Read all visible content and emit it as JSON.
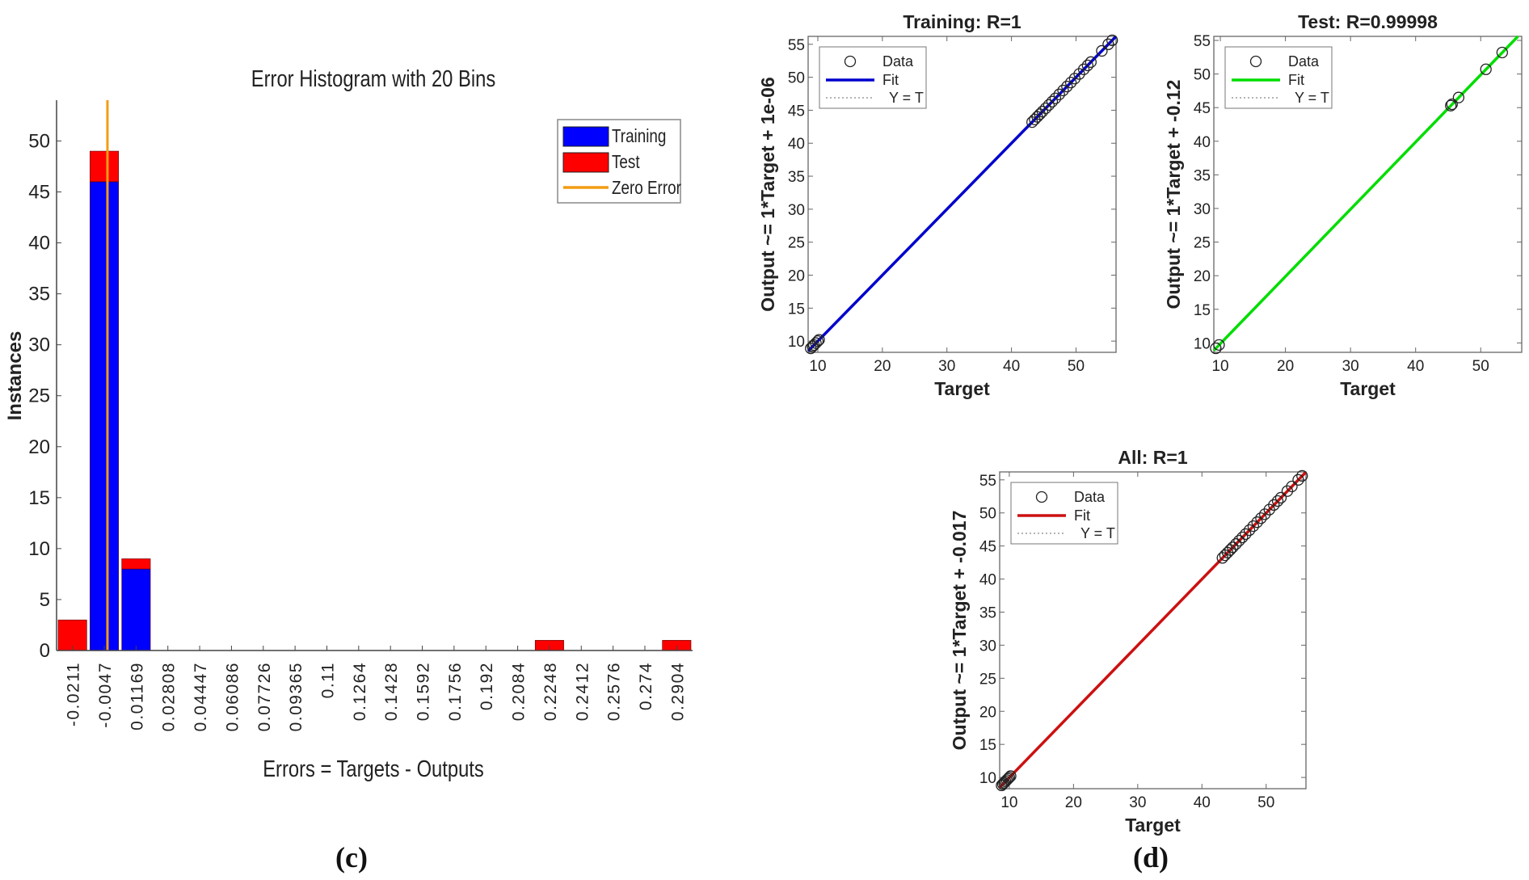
{
  "captions": {
    "c": "(c)",
    "d": "(d)"
  },
  "colors": {
    "training_blue": "#0000ff",
    "test_red": "#ff0000",
    "zero_error": "#f39c12",
    "fit_training": "#0000cc",
    "fit_test": "#00dd00",
    "fit_all": "#cc1111"
  },
  "chart_data": [
    {
      "id": "error-histogram",
      "type": "bar",
      "stacked": true,
      "title": "Error Histogram with 20 Bins",
      "xlabel": "Errors = Targets - Outputs",
      "ylabel": "Instances",
      "categories": [
        "-0.0211",
        "-0.0047",
        "0.01169",
        "0.02808",
        "0.04447",
        "0.06086",
        "0.07726",
        "0.09365",
        "0.11",
        "0.1264",
        "0.1428",
        "0.1592",
        "0.1756",
        "0.192",
        "0.2084",
        "0.2248",
        "0.2412",
        "0.2576",
        "0.274",
        "0.2904"
      ],
      "series": [
        {
          "name": "Training",
          "values": [
            0,
            46,
            8,
            0,
            0,
            0,
            0,
            0,
            0,
            0,
            0,
            0,
            0,
            0,
            0,
            0,
            0,
            0,
            0,
            0
          ]
        },
        {
          "name": "Test",
          "values": [
            3,
            3,
            1,
            0,
            0,
            0,
            0,
            0,
            0,
            0,
            0,
            0,
            0,
            0,
            0,
            1,
            0,
            0,
            0,
            1
          ]
        }
      ],
      "zero_error": {
        "label": "Zero Error",
        "bin_index": 1.6
      },
      "ylim": [
        0,
        54
      ],
      "yticks": [
        0,
        5,
        10,
        15,
        20,
        25,
        30,
        35,
        40,
        45,
        50
      ],
      "legend": [
        "Training",
        "Test",
        "Zero Error"
      ],
      "legend_position": "top-right",
      "grid": false
    },
    {
      "id": "regression-training",
      "type": "scatter",
      "title": "Training: R=1",
      "xlabel": "Target",
      "ylabel": "Output ~= 1*Target + 1e-06",
      "xlim": [
        8.5,
        56.2
      ],
      "ylim": [
        8.3,
        56.2
      ],
      "xticks": [
        10,
        20,
        30,
        40,
        50
      ],
      "yticks": [
        10,
        15,
        20,
        25,
        30,
        35,
        40,
        45,
        50,
        55
      ],
      "fit": {
        "slope": 1,
        "intercept": 1e-06,
        "label": "Fit"
      },
      "identity": {
        "label": "Y = T"
      },
      "legend": [
        "Data",
        "Fit",
        "Y = T"
      ],
      "legend_position": "top-left",
      "points": [
        [
          8.9,
          8.9
        ],
        [
          9.2,
          9.2
        ],
        [
          9.4,
          9.4
        ],
        [
          9.7,
          9.7
        ],
        [
          10.0,
          10.0
        ],
        [
          10.2,
          10.2
        ],
        [
          43.2,
          43.2
        ],
        [
          43.6,
          43.6
        ],
        [
          44.0,
          44.0
        ],
        [
          44.4,
          44.4
        ],
        [
          44.8,
          44.8
        ],
        [
          45.3,
          45.3
        ],
        [
          45.8,
          45.8
        ],
        [
          46.3,
          46.3
        ],
        [
          46.8,
          46.8
        ],
        [
          47.4,
          47.4
        ],
        [
          48.0,
          48.0
        ],
        [
          48.6,
          48.6
        ],
        [
          49.2,
          49.2
        ],
        [
          49.8,
          49.8
        ],
        [
          50.5,
          50.5
        ],
        [
          51.2,
          51.2
        ],
        [
          51.8,
          51.8
        ],
        [
          52.3,
          52.3
        ],
        [
          54.0,
          54.0
        ],
        [
          55.0,
          55.0
        ],
        [
          55.6,
          55.6
        ]
      ]
    },
    {
      "id": "regression-test",
      "type": "scatter",
      "title": "Test: R=0.99998",
      "xlabel": "Target",
      "ylabel": "Output ~= 1*Target + -0.12",
      "xlim": [
        9.0,
        56.3
      ],
      "ylim": [
        8.6,
        55.6
      ],
      "xticks": [
        10,
        20,
        30,
        40,
        50
      ],
      "yticks": [
        10,
        15,
        20,
        25,
        30,
        35,
        40,
        45,
        50,
        55
      ],
      "fit": {
        "slope": 1,
        "intercept": -0.12,
        "label": "Fit"
      },
      "identity": {
        "label": "Y = T"
      },
      "legend": [
        "Data",
        "Fit",
        "Y = T"
      ],
      "legend_position": "top-left",
      "points": [
        [
          9.3,
          9.2
        ],
        [
          9.8,
          9.7
        ],
        [
          45.4,
          45.3
        ],
        [
          45.6,
          45.5
        ],
        [
          46.6,
          46.5
        ],
        [
          50.8,
          50.7
        ],
        [
          53.3,
          53.2
        ]
      ]
    },
    {
      "id": "regression-all",
      "type": "scatter",
      "title": "All: R=1",
      "xlabel": "Target",
      "ylabel": "Output ~= 1*Target + -0.017",
      "xlim": [
        8.5,
        56.2
      ],
      "ylim": [
        8.3,
        56.2
      ],
      "xticks": [
        10,
        20,
        30,
        40,
        50
      ],
      "yticks": [
        10,
        15,
        20,
        25,
        30,
        35,
        40,
        45,
        50,
        55
      ],
      "fit": {
        "slope": 1,
        "intercept": -0.017,
        "label": "Fit"
      },
      "identity": {
        "label": "Y = T"
      },
      "legend": [
        "Data",
        "Fit",
        "Y = T"
      ],
      "legend_position": "top-left",
      "points": [
        [
          8.8,
          8.8
        ],
        [
          9.0,
          9.0
        ],
        [
          9.2,
          9.2
        ],
        [
          9.4,
          9.4
        ],
        [
          9.6,
          9.6
        ],
        [
          9.8,
          9.8
        ],
        [
          10.0,
          10.0
        ],
        [
          10.2,
          10.2
        ],
        [
          43.2,
          43.2
        ],
        [
          43.6,
          43.6
        ],
        [
          44.0,
          44.0
        ],
        [
          44.4,
          44.4
        ],
        [
          44.8,
          44.8
        ],
        [
          45.3,
          45.3
        ],
        [
          45.8,
          45.8
        ],
        [
          46.3,
          46.3
        ],
        [
          46.8,
          46.8
        ],
        [
          47.4,
          47.4
        ],
        [
          48.0,
          48.0
        ],
        [
          48.6,
          48.6
        ],
        [
          49.2,
          49.2
        ],
        [
          49.8,
          49.8
        ],
        [
          50.5,
          50.5
        ],
        [
          51.2,
          51.2
        ],
        [
          51.8,
          51.8
        ],
        [
          52.3,
          52.3
        ],
        [
          53.3,
          53.3
        ],
        [
          54.0,
          54.0
        ],
        [
          55.0,
          55.0
        ],
        [
          55.6,
          55.6
        ]
      ]
    }
  ]
}
